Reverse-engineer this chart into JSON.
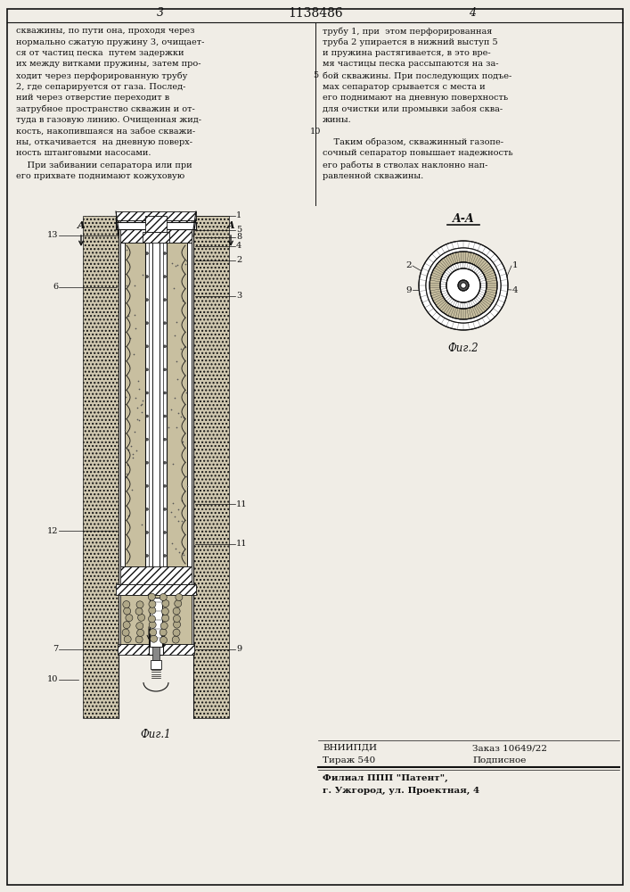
{
  "title": "1138486",
  "page_left": "3",
  "page_right": "4",
  "bg_color": "#f0ede6",
  "text_color": "#111111",
  "fig1_caption": "Фиг.1",
  "fig2_caption": "Фиг.2",
  "fig2_label": "A-A",
  "left_text_line1": "скважины, по пути она, проходя через",
  "left_text_line2": "нормально сжатую пружину 3, очищает-",
  "left_text_line3": "ся от частиц песка  путем задержки",
  "left_text_line4": "их между витками пружины, затем про-",
  "left_text_line5": "ходит через перфорированную трубу",
  "left_text_line6": "2, где сепарируется от газа. Послед-",
  "left_text_line7": "ний через отверстие переходит в",
  "left_text_line8": "затрубное пространство скважин и от-",
  "left_text_line9": "туда в газовую линию. Очищенная жид-",
  "left_text_line10": "кость, накопившаяся на забое скважи-",
  "left_text_line11": "ны, откачивается  на дневную поверх-",
  "left_text_line12": "ность штанговыми насосами.",
  "left_text_line13": "    При забивании сепаратора или при",
  "left_text_line14": "его прихвате поднимают кожуховую",
  "right_text_line1": "трубу 1, при  этом перфорированная",
  "right_text_line2": "труба 2 упирается в нижний выступ 5",
  "right_text_line3": "и пружина растягивается, в это вре-",
  "right_text_line4": "мя частицы песка рассыпаются на за-",
  "right_text_line5": "бой скважины. При последующих подъе-",
  "right_text_line6": "мах сепаратор срывается с места и",
  "right_text_line7": "его поднимают на дневную поверхность",
  "right_text_line8": "для очистки или промывки забоя сква-",
  "right_text_line9": "жины.",
  "right_text_line10": "    Таким образом, скважинный газопе-",
  "right_text_line11": "сочный сепаратор повышает надежность",
  "right_text_line12": "его работы в стволах наклонно нап-",
  "right_text_line13": "равленной скважины.",
  "linenum_5": "5",
  "linenum_10": "10",
  "vniipdi_line1": "ВНИИПДИ",
  "vniipdi_order": "Заказ 10649/22",
  "vniipdi_line2": "Тираж 540",
  "vniipdi_podp": "Подписное",
  "filial_line1": "Филиал ППП \"Патент\",",
  "filial_line2": "г. Ужгород, ул. Проектная, 4"
}
